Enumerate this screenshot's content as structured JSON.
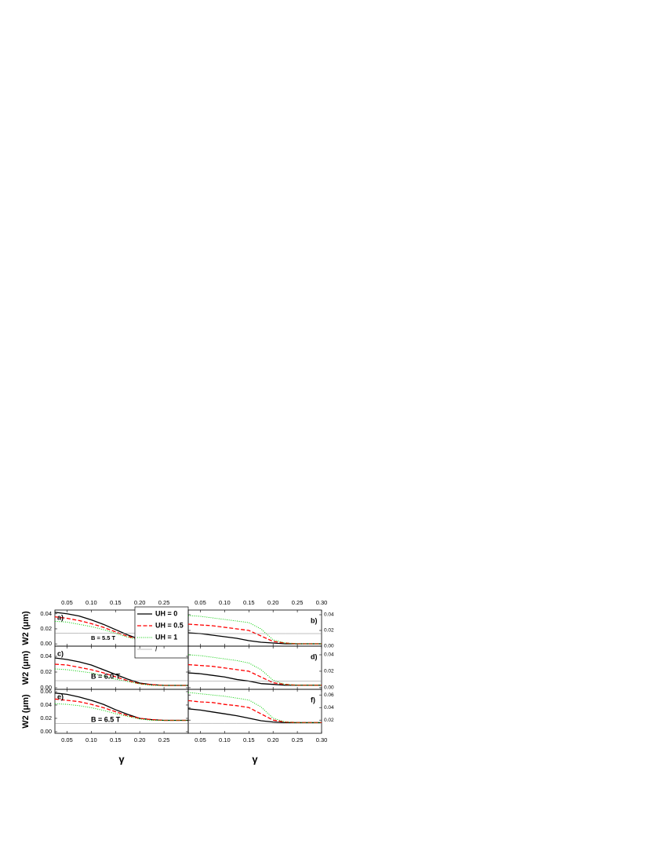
{
  "chart_data": [
    {
      "type": "line",
      "label": "a)",
      "annotation": "B = 5.5 T",
      "ylabel": "W2 (μm)",
      "ytick_side": "left",
      "xtick_labels": "top",
      "legend": "upper right",
      "x": [
        0.025,
        0.05,
        0.075,
        0.1,
        0.125,
        0.15,
        0.175,
        0.2,
        0.225,
        0.25,
        0.275,
        0.3
      ],
      "xlim": [
        0.025,
        0.3
      ],
      "ylim": [
        -0.003,
        0.045
      ],
      "xticks": [
        0.05,
        {
          "value": 0.1,
          "label": "0.10"
        },
        0.15,
        {
          "value": 0.2,
          "label": "0.20"
        },
        0.25
      ],
      "yticks": [
        {
          "value": 0,
          "label": "0.00"
        },
        0.02,
        0.04
      ],
      "series": [
        {
          "name": "UH = 0",
          "color": "#000000",
          "style": "solid",
          "values": [
            0.042,
            0.04,
            0.037,
            0.032,
            0.026,
            0.019,
            0.012,
            0.006,
            0.004,
            0.003,
            0.003,
            0.003
          ]
        },
        {
          "name": "UH = 0.5",
          "color": "#ff0000",
          "style": "dashed",
          "values": [
            0.036,
            0.034,
            0.031,
            0.027,
            0.022,
            0.016,
            0.01,
            0.006,
            0.004,
            0.003,
            0.003,
            0.003
          ]
        },
        {
          "name": "UH = 1",
          "color": "#00cc00",
          "style": "dotted",
          "values": [
            0.03,
            0.029,
            0.026,
            0.023,
            0.019,
            0.014,
            0.009,
            0.005,
            0.004,
            0.003,
            0.003,
            0.003
          ]
        },
        {
          "name": "l",
          "color": "#808080",
          "style": "thin",
          "values": [
            0.014,
            0.014,
            0.014,
            0.014,
            0.014,
            0.014,
            0.014,
            0.014,
            0.014,
            0.014,
            0.014,
            0.014
          ]
        }
      ]
    },
    {
      "type": "line",
      "label": "b)",
      "ytick_side": "right",
      "xtick_labels": "top",
      "x": [
        0.025,
        0.05,
        0.075,
        0.1,
        0.125,
        0.15,
        0.175,
        0.2,
        0.225,
        0.25,
        0.275,
        0.3
      ],
      "xlim": [
        0.025,
        0.3
      ],
      "ylim": [
        0,
        0.046
      ],
      "xticks": [
        0.05,
        {
          "value": 0.1,
          "label": "0.10"
        },
        0.15,
        {
          "value": 0.2,
          "label": "0.20"
        },
        0.25,
        {
          "value": 0.3,
          "label": "0.30"
        }
      ],
      "yticks": [
        {
          "value": 0,
          "label": "0.00"
        },
        0.02,
        0.04
      ],
      "series": [
        {
          "color": "#000000",
          "style": "solid",
          "values": [
            0.017,
            0.016,
            0.014,
            0.012,
            0.01,
            0.007,
            0.005,
            0.004,
            0.003,
            0.003,
            0.003,
            0.003
          ]
        },
        {
          "color": "#ff0000",
          "style": "dashed",
          "values": [
            0.028,
            0.027,
            0.026,
            0.024,
            0.022,
            0.02,
            0.013,
            0.006,
            0.004,
            0.003,
            0.003,
            0.003
          ]
        },
        {
          "color": "#00cc00",
          "style": "dotted",
          "values": [
            0.039,
            0.038,
            0.036,
            0.034,
            0.032,
            0.03,
            0.022,
            0.008,
            0.004,
            0.003,
            0.003,
            0.003
          ]
        },
        {
          "color": "#808080",
          "style": "thin",
          "values": [
            0.016,
            0.016,
            0.016,
            0.016,
            0.016,
            0.016,
            0.016,
            0.016,
            0.016,
            0.016,
            0.016,
            0.016
          ]
        }
      ]
    },
    {
      "type": "line",
      "label": "c)",
      "annotation": "B = 6.0 T",
      "ylabel": "W2 (μm)",
      "ytick_side": "left",
      "x": [
        0.025,
        0.05,
        0.075,
        0.1,
        0.125,
        0.15,
        0.175,
        0.2,
        0.225,
        0.25,
        0.275,
        0.3
      ],
      "xlim": [
        0.025,
        0.3
      ],
      "ylim": [
        -0.002,
        0.053
      ],
      "xticks": [
        0.05,
        {
          "value": 0.1,
          "label": "0.10"
        },
        0.15,
        {
          "value": 0.2,
          "label": "0.20"
        },
        0.25
      ],
      "yticks": [
        {
          "value": 0,
          "label": "0.00"
        },
        0.02,
        0.04
      ],
      "series": [
        {
          "color": "#000000",
          "style": "solid",
          "values": [
            0.038,
            0.036,
            0.033,
            0.029,
            0.023,
            0.017,
            0.011,
            0.006,
            0.004,
            0.003,
            0.003,
            0.003
          ]
        },
        {
          "color": "#ff0000",
          "style": "dashed",
          "values": [
            0.03,
            0.029,
            0.026,
            0.023,
            0.019,
            0.014,
            0.009,
            0.005,
            0.004,
            0.003,
            0.003,
            0.003
          ]
        },
        {
          "color": "#00cc00",
          "style": "dotted",
          "values": [
            0.024,
            0.023,
            0.021,
            0.019,
            0.015,
            0.011,
            0.008,
            0.005,
            0.003,
            0.003,
            0.003,
            0.003
          ]
        },
        {
          "color": "#808080",
          "style": "thin",
          "values": [
            0.009,
            0.009,
            0.009,
            0.009,
            0.009,
            0.009,
            0.009,
            0.009,
            0.009,
            0.009,
            0.009,
            0.009
          ]
        }
      ]
    },
    {
      "type": "line",
      "label": "d)",
      "ytick_side": "right",
      "x": [
        0.025,
        0.05,
        0.075,
        0.1,
        0.125,
        0.15,
        0.175,
        0.2,
        0.225,
        0.25,
        0.275,
        0.3
      ],
      "xlim": [
        0.025,
        0.3
      ],
      "ylim": [
        -0.002,
        0.0505
      ],
      "xticks": [
        0.05,
        {
          "value": 0.1,
          "label": "0.10"
        },
        0.15,
        {
          "value": 0.2,
          "label": "0.20"
        },
        0.25,
        {
          "value": 0.3,
          "label": "0.30"
        }
      ],
      "yticks": [
        {
          "value": 0,
          "label": "0.00"
        },
        0.02,
        0.04
      ],
      "series": [
        {
          "color": "#000000",
          "style": "solid",
          "values": [
            0.018,
            0.017,
            0.015,
            0.013,
            0.01,
            0.008,
            0.005,
            0.004,
            0.003,
            0.003,
            0.003,
            0.003
          ]
        },
        {
          "color": "#ff0000",
          "style": "dashed",
          "values": [
            0.028,
            0.027,
            0.026,
            0.024,
            0.022,
            0.02,
            0.013,
            0.006,
            0.004,
            0.003,
            0.003,
            0.003
          ]
        },
        {
          "color": "#00cc00",
          "style": "dotted",
          "values": [
            0.04,
            0.039,
            0.037,
            0.035,
            0.033,
            0.03,
            0.022,
            0.009,
            0.004,
            0.003,
            0.003,
            0.003
          ]
        },
        {
          "color": "#808080",
          "style": "thin",
          "values": [
            0.008,
            0.008,
            0.008,
            0.008,
            0.008,
            0.008,
            0.008,
            0.008,
            0.008,
            0.008,
            0.008,
            0.008
          ]
        }
      ]
    },
    {
      "type": "line",
      "label": "e)",
      "annotation": "B = 6.5 T",
      "ylabel": "W2 (μm)",
      "xlabel": "γ",
      "ytick_side": "left",
      "xtick_labels": "bottom",
      "x": [
        0.025,
        0.05,
        0.075,
        0.1,
        0.125,
        0.15,
        0.175,
        0.2,
        0.225,
        0.25,
        0.275,
        0.3
      ],
      "xlim": [
        0.025,
        0.3
      ],
      "ylim": [
        -0.0024,
        0.0635
      ],
      "xticks": [
        0.05,
        {
          "value": 0.1,
          "label": "0.10"
        },
        0.15,
        {
          "value": 0.2,
          "label": "0.20"
        },
        0.25
      ],
      "yticks": [
        {
          "value": 0,
          "label": "0.00"
        },
        0.02,
        0.04,
        0.06
      ],
      "series": [
        {
          "color": "#000000",
          "style": "solid",
          "values": [
            0.058,
            0.056,
            0.052,
            0.047,
            0.041,
            0.033,
            0.026,
            0.02,
            0.018,
            0.017,
            0.017,
            0.017
          ]
        },
        {
          "color": "#ff0000",
          "style": "dashed",
          "values": [
            0.049,
            0.047,
            0.045,
            0.041,
            0.036,
            0.03,
            0.024,
            0.02,
            0.018,
            0.017,
            0.017,
            0.017
          ]
        },
        {
          "color": "#00cc00",
          "style": "dotted",
          "values": [
            0.042,
            0.041,
            0.039,
            0.036,
            0.032,
            0.027,
            0.023,
            0.019,
            0.017,
            0.017,
            0.017,
            0.017
          ]
        },
        {
          "color": "#808080",
          "style": "thin",
          "values": [
            0.012,
            0.012,
            0.012,
            0.012,
            0.012,
            0.012,
            0.012,
            0.012,
            0.012,
            0.012,
            0.012,
            0.012
          ]
        }
      ]
    },
    {
      "type": "line",
      "label": "f)",
      "xlabel": "γ",
      "ytick_side": "right",
      "xtick_labels": "bottom",
      "x": [
        0.025,
        0.05,
        0.075,
        0.1,
        0.125,
        0.15,
        0.175,
        0.2,
        0.225,
        0.25,
        0.275,
        0.3
      ],
      "xlim": [
        0.025,
        0.3
      ],
      "ylim": [
        -0.001,
        0.069
      ],
      "xticks": [
        0.05,
        {
          "value": 0.1,
          "label": "0.10"
        },
        0.15,
        {
          "value": 0.2,
          "label": "0.20"
        },
        0.25,
        {
          "value": 0.3,
          "label": "0.30"
        }
      ],
      "yticks": [
        0.02,
        0.04,
        0.06
      ],
      "series": [
        {
          "color": "#000000",
          "style": "solid",
          "values": [
            0.038,
            0.036,
            0.033,
            0.03,
            0.027,
            0.023,
            0.019,
            0.017,
            0.016,
            0.016,
            0.016,
            0.016
          ]
        },
        {
          "color": "#ff0000",
          "style": "dashed",
          "values": [
            0.051,
            0.049,
            0.048,
            0.045,
            0.043,
            0.04,
            0.03,
            0.02,
            0.017,
            0.016,
            0.016,
            0.016
          ]
        },
        {
          "color": "#00cc00",
          "style": "dotted",
          "values": [
            0.064,
            0.062,
            0.06,
            0.058,
            0.055,
            0.052,
            0.041,
            0.023,
            0.017,
            0.016,
            0.016,
            0.016
          ]
        },
        {
          "color": "#808080",
          "style": "thin",
          "values": [
            0.015,
            0.015,
            0.015,
            0.015,
            0.015,
            0.015,
            0.015,
            0.015,
            0.015,
            0.015,
            0.015,
            0.015
          ]
        }
      ]
    }
  ]
}
